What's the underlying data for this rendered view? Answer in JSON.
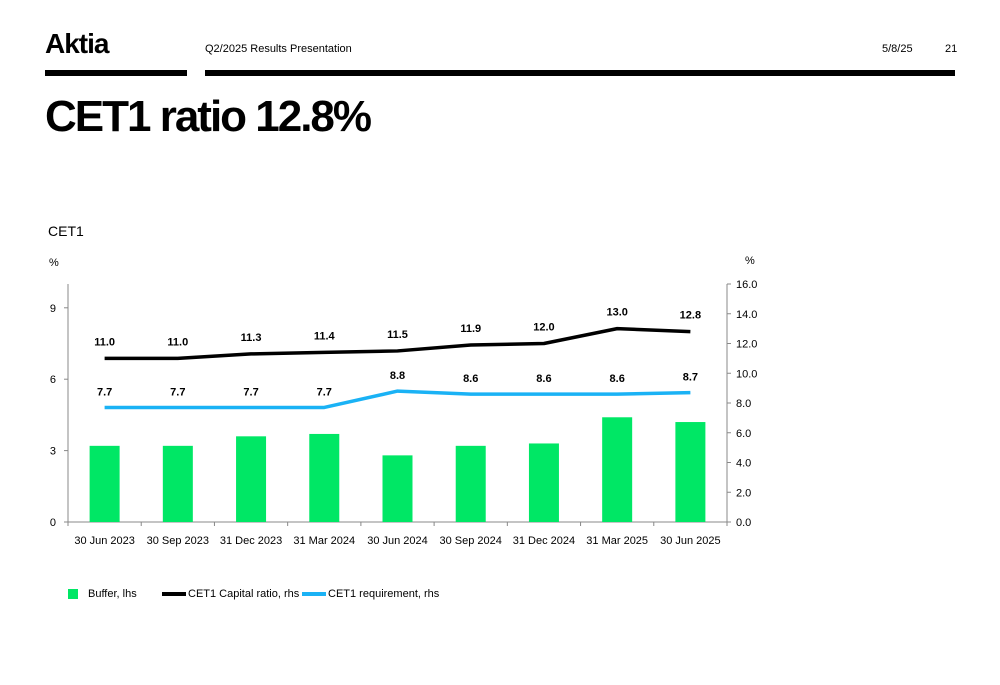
{
  "header": {
    "logo": "Aktia",
    "subtitle": "Q2/2025 Results Presentation",
    "date": "5/8/25",
    "page": "21"
  },
  "title": "CET1 ratio 12.8%",
  "chart_title": "CET1",
  "colors": {
    "buffer": "#00e765",
    "ratio": "#000000",
    "requirement": "#1ab2f5"
  },
  "legend": {
    "buffer": "Buffer, lhs",
    "ratio": "CET1 Capital ratio, rhs",
    "requirement": "CET1 requirement, rhs"
  },
  "chart_data": {
    "type": "bar",
    "categories": [
      "30 Jun 2023",
      "30 Sep 2023",
      "31 Dec 2023",
      "31 Mar 2024",
      "30 Jun 2024",
      "30 Sep 2024",
      "31 Dec 2024",
      "31 Mar 2025",
      "30 Jun 2025"
    ],
    "series": [
      {
        "name": "Buffer, lhs",
        "type": "bar",
        "axis": "left",
        "values": [
          3.2,
          3.2,
          3.6,
          3.7,
          2.8,
          3.2,
          3.3,
          4.4,
          4.2
        ]
      },
      {
        "name": "CET1 Capital ratio, rhs",
        "type": "line",
        "axis": "right",
        "values": [
          11.0,
          11.0,
          11.3,
          11.4,
          11.5,
          11.9,
          12.0,
          13.0,
          12.8
        ],
        "labels": [
          "11.0",
          "11.0",
          "11.3",
          "11.4",
          "11.5",
          "11.9",
          "12.0",
          "13.0",
          "12.8"
        ]
      },
      {
        "name": "CET1 requirement, rhs",
        "type": "line",
        "axis": "right",
        "values": [
          7.7,
          7.7,
          7.7,
          7.7,
          8.8,
          8.6,
          8.6,
          8.6,
          8.7
        ],
        "labels": [
          "7.7",
          "7.7",
          "7.7",
          "7.7",
          "8.8",
          "8.6",
          "8.6",
          "8.6",
          "8.7"
        ]
      }
    ],
    "y_left": {
      "label": "%",
      "lim": [
        0,
        10
      ],
      "ticks": [
        "0",
        "3",
        "6",
        "9"
      ],
      "tick_values": [
        0,
        3,
        6,
        9
      ]
    },
    "y_right": {
      "label": "%",
      "lim": [
        0,
        16
      ],
      "ticks": [
        "0.0",
        "2.0",
        "4.0",
        "6.0",
        "8.0",
        "10.0",
        "12.0",
        "14.0",
        "16.0"
      ],
      "tick_values": [
        0,
        2,
        4,
        6,
        8,
        10,
        12,
        14,
        16
      ]
    },
    "grid": false,
    "legend_position": "bottom-left"
  }
}
